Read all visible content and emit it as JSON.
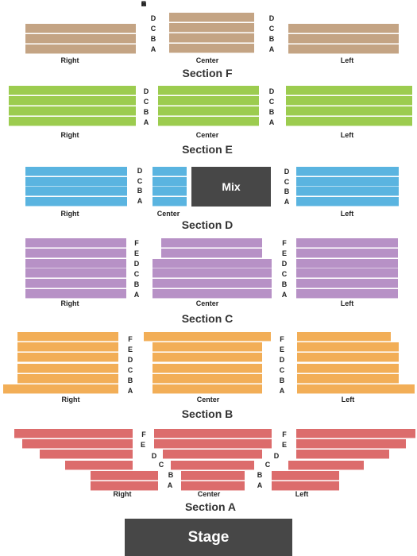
{
  "colors": {
    "section_f": "#c4a484",
    "section_e": "#9ccc4f",
    "section_d": "#5ab4e0",
    "section_c": "#b791c6",
    "section_b": "#f2ae57",
    "section_a": "#dc6c6c",
    "mix_stage": "#474747"
  },
  "wing_labels": {
    "right": "Right",
    "center": "Center",
    "left": "Left"
  },
  "sections": {
    "f": {
      "title": "Section F",
      "rows": [
        "D",
        "C",
        "B",
        "A"
      ]
    },
    "e": {
      "title": "Section E",
      "rows": [
        "D",
        "C",
        "B",
        "A"
      ]
    },
    "d": {
      "title": "Section D",
      "rows": [
        "D",
        "C",
        "B",
        "A"
      ],
      "mix_label": "Mix"
    },
    "c": {
      "title": "Section C",
      "rows": [
        "F",
        "E",
        "D",
        "C",
        "B",
        "A"
      ]
    },
    "b": {
      "title": "Section B",
      "rows": [
        "F",
        "E",
        "D",
        "C",
        "B",
        "A"
      ]
    },
    "a": {
      "title": "Section A",
      "rows": [
        "F",
        "E",
        "D",
        "C",
        "B",
        "A"
      ]
    }
  },
  "stage_label": "Stage"
}
